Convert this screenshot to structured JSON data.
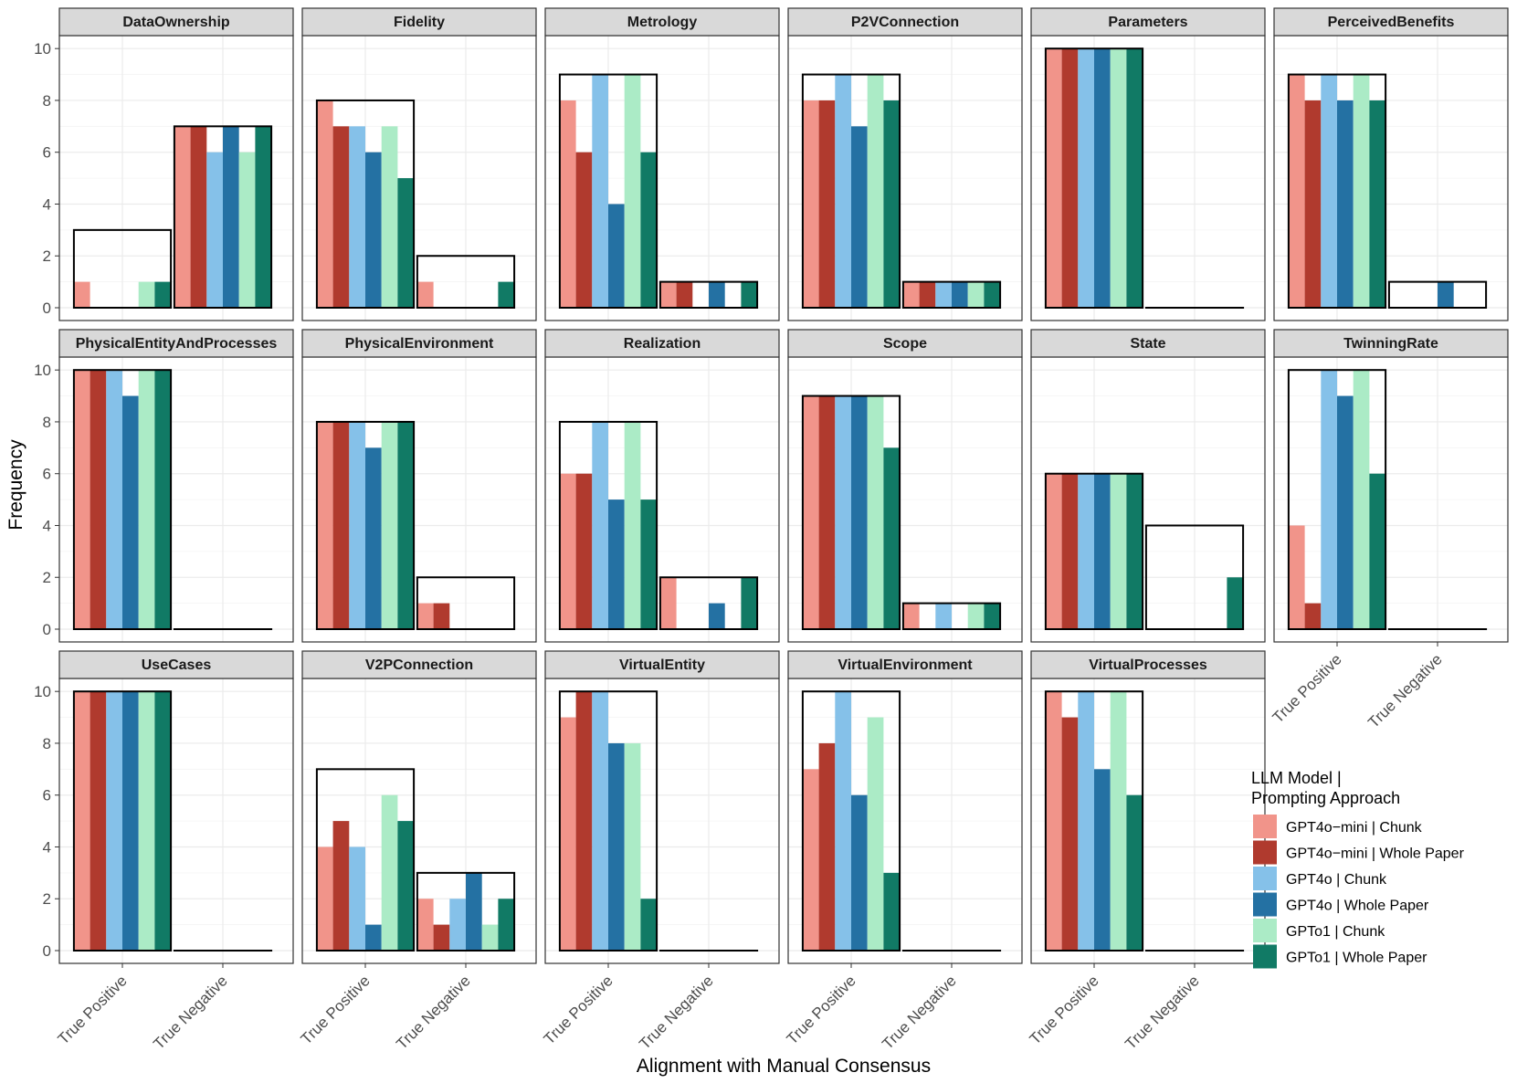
{
  "chart_data": {
    "type": "bar",
    "ylabel": "Frequency",
    "xlabel": "Alignment with Manual Consensus",
    "categories": [
      "True Positive",
      "True Negative"
    ],
    "y_ticks": [
      "0",
      "2",
      "4",
      "6",
      "8",
      "10"
    ],
    "ylim": [
      0,
      10.5
    ],
    "series_names": [
      "GPT4o−mini  |  Chunk",
      "GPT4o−mini  |  Whole Paper",
      "GPT4o  |  Chunk",
      "GPT4o  |  Whole Paper",
      "GPTo1  |  Chunk",
      "GPTo1  |  Whole Paper"
    ],
    "series_colors": [
      "#f1948a",
      "#b03a2e",
      "#85c1e9",
      "#2471a3",
      "#abebc6",
      "#117a65"
    ],
    "legend": {
      "title_line1": "LLM Model |",
      "title_line2": "Prompting Approach",
      "position": "right"
    },
    "facets": [
      {
        "name": "DataOwnership",
        "consensus": [
          3,
          7
        ],
        "tp": [
          1,
          0,
          0,
          0,
          1,
          1
        ],
        "tn": [
          7,
          7,
          6,
          7,
          6,
          7
        ]
      },
      {
        "name": "Fidelity",
        "consensus": [
          8,
          2
        ],
        "tp": [
          8,
          7,
          7,
          6,
          7,
          5
        ],
        "tn": [
          1,
          0,
          0,
          0,
          0,
          1
        ]
      },
      {
        "name": "Metrology",
        "consensus": [
          9,
          1
        ],
        "tp": [
          8,
          6,
          9,
          4,
          9,
          6
        ],
        "tn": [
          1,
          1,
          0,
          1,
          0,
          1
        ]
      },
      {
        "name": "P2VConnection",
        "consensus": [
          9,
          1
        ],
        "tp": [
          8,
          8,
          9,
          7,
          9,
          8
        ],
        "tn": [
          1,
          1,
          1,
          1,
          1,
          1
        ]
      },
      {
        "name": "Parameters",
        "consensus": [
          10,
          0
        ],
        "tp": [
          10,
          10,
          10,
          10,
          10,
          10
        ],
        "tn": [
          0,
          0,
          0,
          0,
          0,
          0
        ]
      },
      {
        "name": "PerceivedBenefits",
        "consensus": [
          9,
          1
        ],
        "tp": [
          9,
          8,
          9,
          8,
          9,
          8
        ],
        "tn": [
          0,
          0,
          0,
          1,
          0,
          0
        ]
      },
      {
        "name": "PhysicalEntityAndProcesses",
        "consensus": [
          10,
          0
        ],
        "tp": [
          10,
          10,
          10,
          9,
          10,
          10
        ],
        "tn": [
          0,
          0,
          0,
          0,
          0,
          0
        ]
      },
      {
        "name": "PhysicalEnvironment",
        "consensus": [
          8,
          2
        ],
        "tp": [
          8,
          8,
          8,
          7,
          8,
          8
        ],
        "tn": [
          1,
          1,
          0,
          0,
          0,
          0
        ]
      },
      {
        "name": "Realization",
        "consensus": [
          8,
          2
        ],
        "tp": [
          6,
          6,
          8,
          5,
          8,
          5
        ],
        "tn": [
          2,
          0,
          0,
          1,
          0,
          2
        ]
      },
      {
        "name": "Scope",
        "consensus": [
          9,
          1
        ],
        "tp": [
          9,
          9,
          9,
          9,
          9,
          7
        ],
        "tn": [
          1,
          0,
          1,
          0,
          1,
          1
        ]
      },
      {
        "name": "State",
        "consensus": [
          6,
          4
        ],
        "tp": [
          6,
          6,
          6,
          6,
          6,
          6
        ],
        "tn": [
          0,
          0,
          0,
          0,
          0,
          2
        ]
      },
      {
        "name": "TwinningRate",
        "consensus": [
          10,
          0
        ],
        "tp": [
          4,
          1,
          10,
          9,
          10,
          6
        ],
        "tn": [
          0,
          0,
          0,
          0,
          0,
          0
        ]
      },
      {
        "name": "UseCases",
        "consensus": [
          10,
          0
        ],
        "tp": [
          10,
          10,
          10,
          10,
          10,
          10
        ],
        "tn": [
          0,
          0,
          0,
          0,
          0,
          0
        ]
      },
      {
        "name": "V2PConnection",
        "consensus": [
          7,
          3
        ],
        "tp": [
          4,
          5,
          4,
          1,
          6,
          5
        ],
        "tn": [
          2,
          1,
          2,
          3,
          1,
          2
        ]
      },
      {
        "name": "VirtualEntity",
        "consensus": [
          10,
          0
        ],
        "tp": [
          9,
          10,
          10,
          8,
          8,
          2
        ],
        "tn": [
          0,
          0,
          0,
          0,
          0,
          0
        ]
      },
      {
        "name": "VirtualEnvironment",
        "consensus": [
          10,
          0
        ],
        "tp": [
          7,
          8,
          10,
          6,
          9,
          3
        ],
        "tn": [
          0,
          0,
          0,
          0,
          0,
          0
        ]
      },
      {
        "name": "VirtualProcesses",
        "consensus": [
          10,
          0
        ],
        "tp": [
          10,
          9,
          10,
          7,
          10,
          6
        ],
        "tn": [
          0,
          0,
          0,
          0,
          0,
          0
        ]
      }
    ]
  }
}
